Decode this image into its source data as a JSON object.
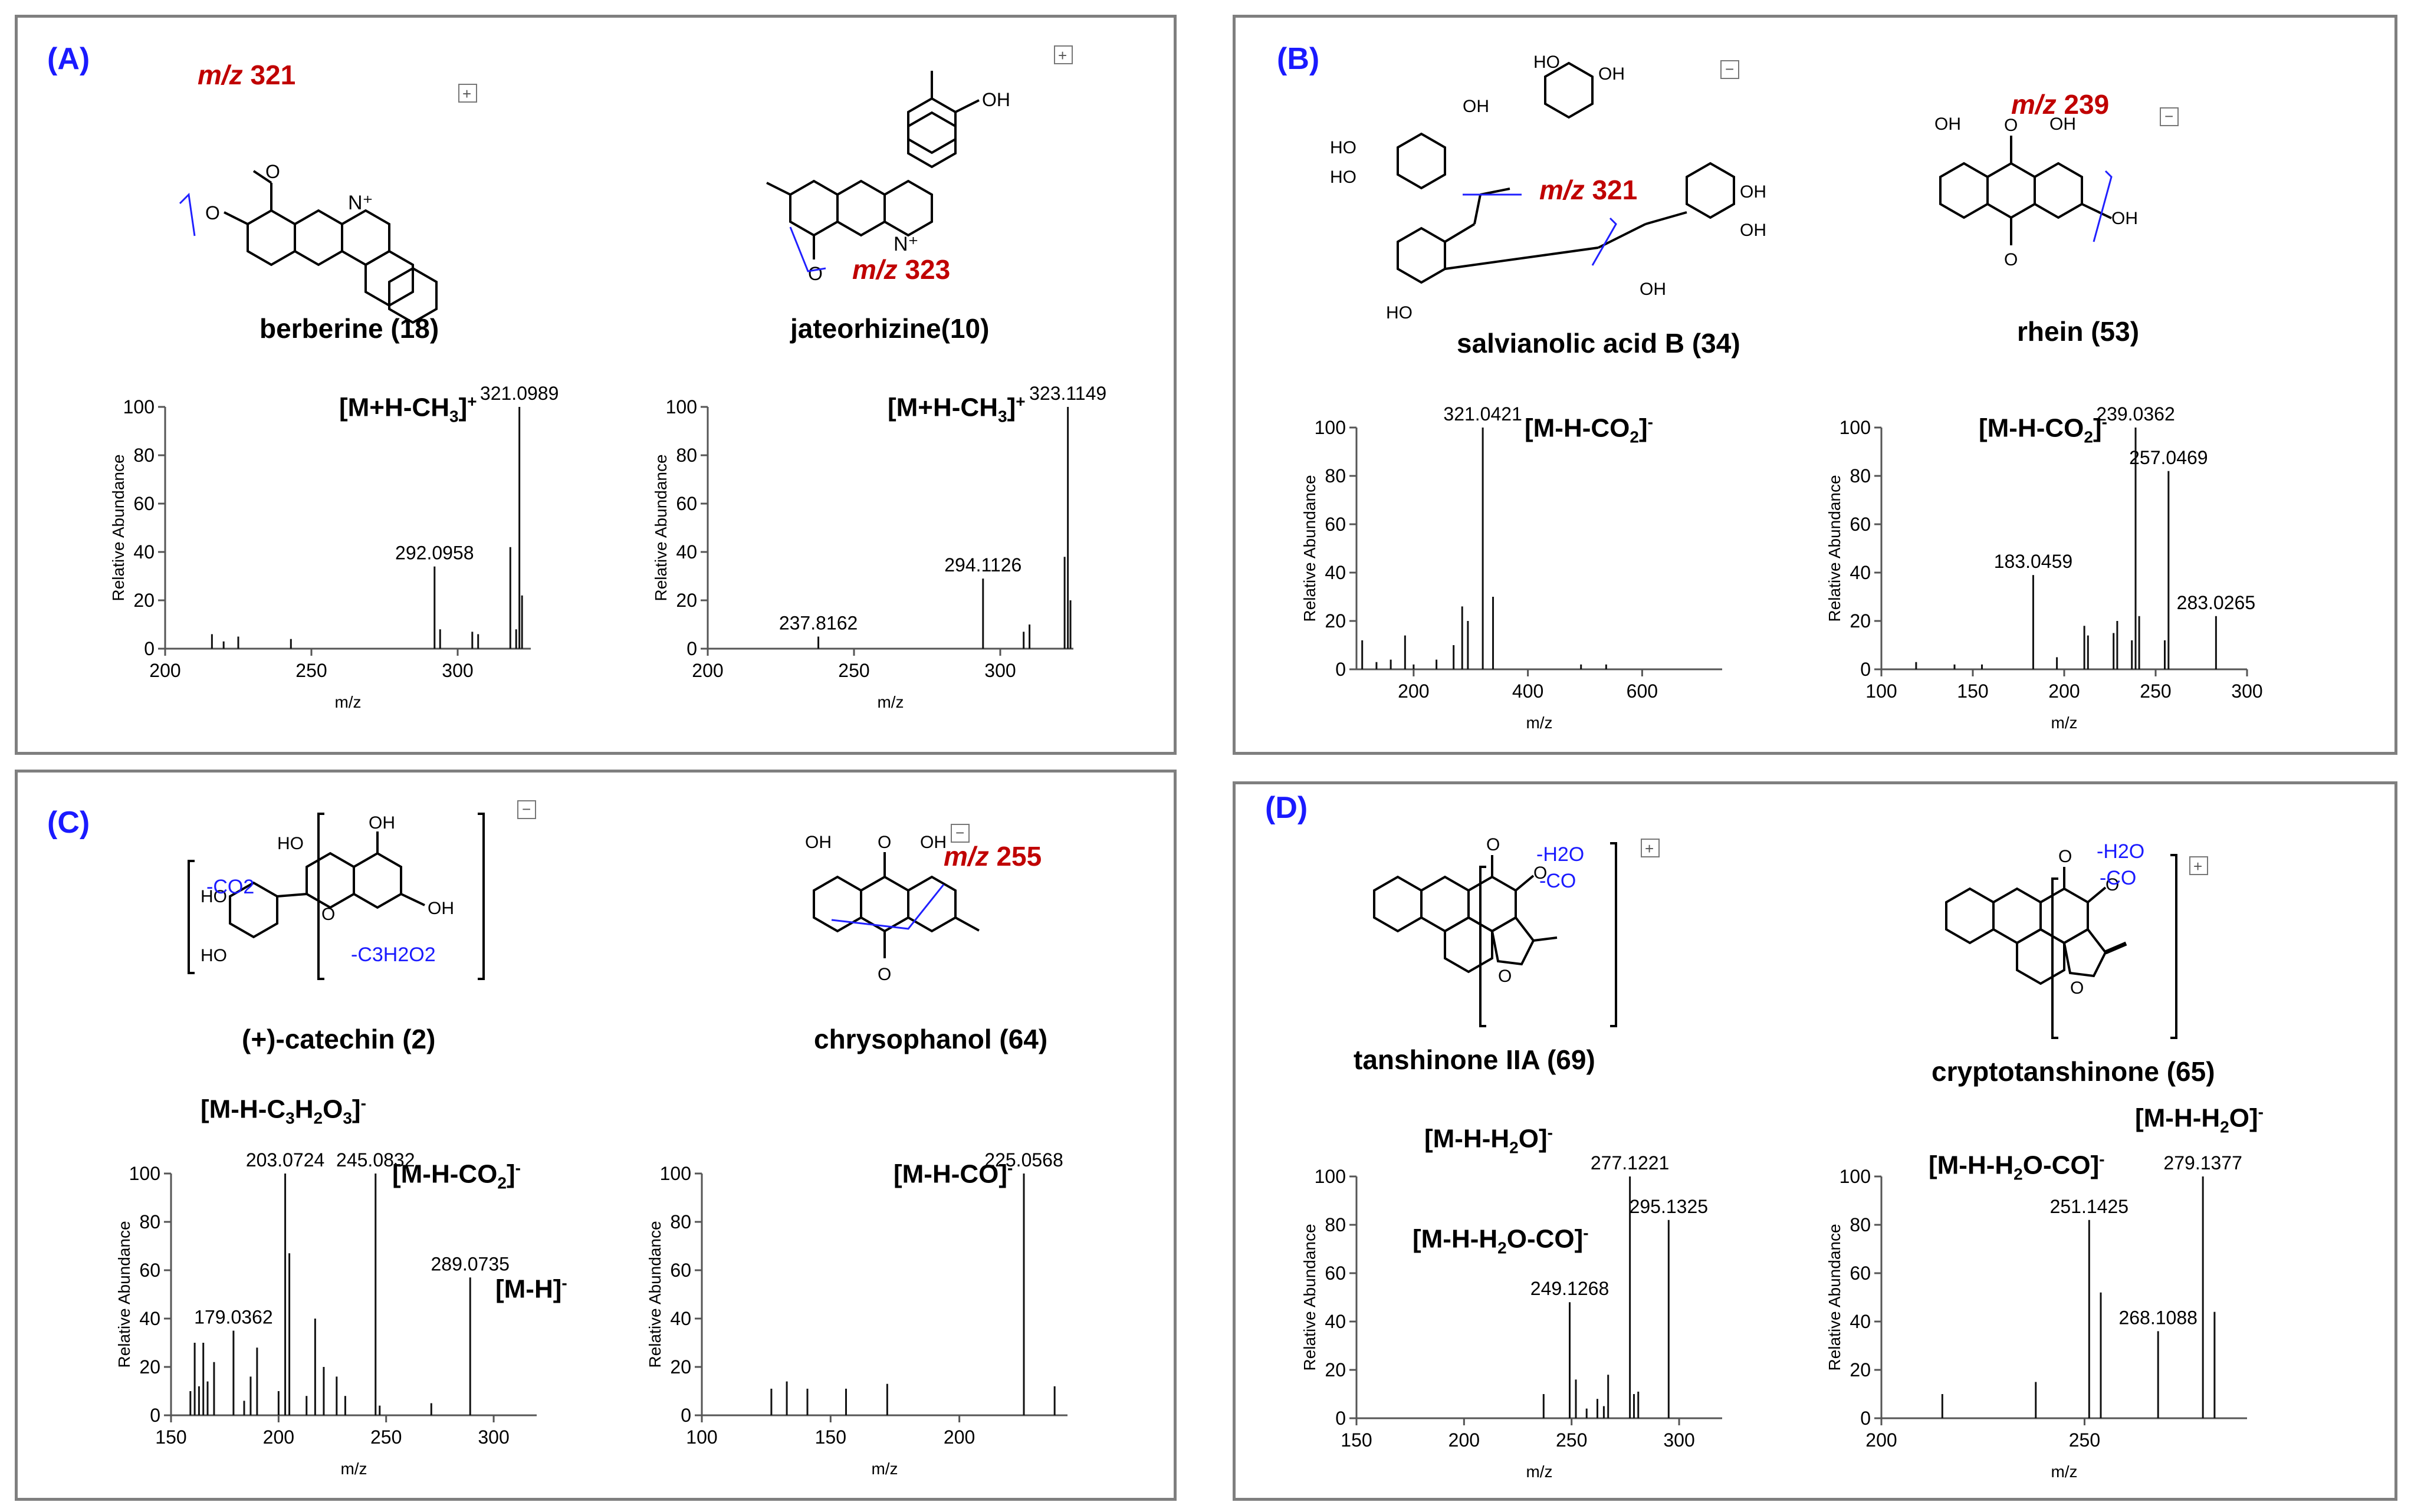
{
  "figure": {
    "panels": [
      {
        "label": "(A)"
      },
      {
        "label": "(B)"
      },
      {
        "label": "(C)"
      },
      {
        "label": "(D)"
      }
    ]
  },
  "compounds": {
    "berberine": "berberine (18)",
    "jateorhizine": "jateorhizine(10)",
    "salvianolic": "salvianolic acid B (34)",
    "rhein": "rhein (53)",
    "catechin": "(+)-catechin (2)",
    "chrysophanol": "chrysophanol (64)",
    "tanshinone": "tanshinone IIA  (69)",
    "cryptotanshinone": "cryptotanshinone (65)"
  },
  "annotations": {
    "berberine_mz": "321",
    "jateorhizine_mz": "323",
    "salvianolic_mz": "321",
    "rhein_mz": "239",
    "chrysophanol_mz": "255",
    "mz_prefix": "m/z",
    "catechin_co2": "-CO2",
    "catechin_c3h2o2": "-C3H2O2",
    "tanshinone_h2o": "-H2O",
    "tanshinone_co": "-CO",
    "crypto_h2o": "-H2O",
    "crypto_co": "-CO"
  },
  "axis_common": {
    "ylabel": "Relative Abundance",
    "xlabel": "m/z"
  },
  "chart_data": [
    {
      "id": "berberine",
      "type": "bar",
      "title": "",
      "xlabel": "m/z",
      "ylabel": "Relative Abundance",
      "xlim": [
        200,
        325
      ],
      "ylim": [
        0,
        100
      ],
      "xticks": [
        200,
        250,
        300
      ],
      "yticks": [
        0,
        20,
        40,
        60,
        80,
        100
      ],
      "x": [
        216,
        220,
        225,
        243,
        292.0958,
        294,
        305,
        307,
        318,
        320,
        321.0989,
        322
      ],
      "values": [
        6,
        3,
        5,
        4,
        34,
        8,
        7,
        6,
        42,
        8,
        100,
        22
      ],
      "data_labels": [
        {
          "text": "321.0989",
          "x": 321.0989,
          "y": 100
        },
        {
          "text": "292.0958",
          "x": 292.0958,
          "y": 34
        }
      ],
      "ion_labels": [
        "[M+H-CH3]+"
      ]
    },
    {
      "id": "jateorhizine",
      "type": "bar",
      "title": "",
      "xlabel": "m/z",
      "ylabel": "Relative Abundance",
      "xlim": [
        200,
        325
      ],
      "ylim": [
        0,
        100
      ],
      "xticks": [
        200,
        250,
        300
      ],
      "yticks": [
        0,
        20,
        40,
        60,
        80,
        100
      ],
      "x": [
        237.8162,
        294.1126,
        308,
        310,
        322,
        323.1149,
        324
      ],
      "values": [
        5,
        29,
        7,
        10,
        38,
        100,
        20
      ],
      "data_labels": [
        {
          "text": "323.1149",
          "x": 323.1149,
          "y": 100
        },
        {
          "text": "294.1126",
          "x": 294.1126,
          "y": 29
        },
        {
          "text": "237.8162",
          "x": 237.8162,
          "y": 5
        }
      ],
      "ion_labels": [
        "[M+H-CH3]+"
      ]
    },
    {
      "id": "salvianolic",
      "type": "bar",
      "title": "",
      "xlabel": "m/z",
      "ylabel": "Relative Abundance",
      "xlim": [
        100,
        740
      ],
      "ylim": [
        0,
        100
      ],
      "xticks": [
        200,
        400,
        600
      ],
      "yticks": [
        0,
        20,
        40,
        60,
        80,
        100
      ],
      "x": [
        110,
        135,
        160,
        185,
        200,
        240,
        270,
        285,
        295,
        321.0421,
        339,
        493,
        537
      ],
      "values": [
        12,
        3,
        4,
        14,
        2,
        4,
        10,
        26,
        20,
        100,
        30,
        2,
        2
      ],
      "data_labels": [
        {
          "text": "321.0421",
          "x": 321.0421,
          "y": 100
        }
      ],
      "ion_labels": [
        "[M-H-CO2]-"
      ]
    },
    {
      "id": "rhein",
      "type": "bar",
      "title": "",
      "xlabel": "m/z",
      "ylabel": "Relative Abundance",
      "xlim": [
        100,
        300
      ],
      "ylim": [
        0,
        100
      ],
      "xticks": [
        100,
        150,
        200,
        250,
        300
      ],
      "yticks": [
        0,
        20,
        40,
        60,
        80,
        100
      ],
      "x": [
        119,
        140,
        155,
        183.0459,
        196,
        211,
        213,
        227,
        229,
        237,
        239.0362,
        241,
        255,
        257.0469,
        283.0265
      ],
      "values": [
        3,
        2,
        2,
        39,
        5,
        18,
        14,
        15,
        20,
        12,
        100,
        22,
        12,
        82,
        22
      ],
      "data_labels": [
        {
          "text": "239.0362",
          "x": 239.0362,
          "y": 100
        },
        {
          "text": "257.0469",
          "x": 257.0469,
          "y": 82
        },
        {
          "text": "183.0459",
          "x": 183.0459,
          "y": 39
        },
        {
          "text": "283.0265",
          "x": 283.0265,
          "y": 22
        }
      ],
      "ion_labels": [
        "[M-H-CO2]-"
      ]
    },
    {
      "id": "catechin",
      "type": "bar",
      "title": "",
      "xlabel": "m/z",
      "ylabel": "Relative Abundance",
      "xlim": [
        150,
        320
      ],
      "ylim": [
        0,
        100
      ],
      "xticks": [
        150,
        200,
        250,
        300
      ],
      "yticks": [
        0,
        20,
        40,
        60,
        80,
        100
      ],
      "x": [
        159,
        161,
        163,
        165,
        167,
        170,
        179.0362,
        184,
        187,
        190,
        200,
        203.0724,
        205,
        213,
        217,
        221,
        227,
        231,
        245.0832,
        247,
        271,
        289.0735
      ],
      "values": [
        10,
        30,
        12,
        30,
        14,
        22,
        35,
        6,
        16,
        28,
        10,
        100,
        67,
        8,
        40,
        20,
        16,
        8,
        100,
        4,
        5,
        57
      ],
      "data_labels": [
        {
          "text": "203.0724",
          "x": 203.0724,
          "y": 100
        },
        {
          "text": "245.0832",
          "x": 245.0832,
          "y": 100
        },
        {
          "text": "179.0362",
          "x": 179.0362,
          "y": 35
        },
        {
          "text": "289.0735",
          "x": 289.0735,
          "y": 57
        }
      ],
      "ion_labels": [
        "[M-H-C3H2O3]-",
        "[M-H-CO2]-",
        "[M-H]-"
      ]
    },
    {
      "id": "chrysophanol",
      "type": "bar",
      "title": "",
      "xlabel": "m/z",
      "ylabel": "Relative Abundance",
      "xlim": [
        100,
        242
      ],
      "ylim": [
        0,
        100
      ],
      "xticks": [
        100,
        150,
        200
      ],
      "yticks": [
        0,
        20,
        40,
        60,
        80,
        100
      ],
      "x": [
        127,
        133,
        141,
        156,
        172,
        225.0568,
        237
      ],
      "values": [
        11,
        14,
        11,
        11,
        13,
        100,
        12
      ],
      "data_labels": [
        {
          "text": "225.0568",
          "x": 225.0568,
          "y": 100
        }
      ],
      "ion_labels": [
        "[M-H-CO]-"
      ]
    },
    {
      "id": "tanshinone",
      "type": "bar",
      "title": "",
      "xlabel": "m/z",
      "ylabel": "Relative Abundance",
      "xlim": [
        150,
        320
      ],
      "ylim": [
        0,
        100
      ],
      "xticks": [
        150,
        200,
        250,
        300
      ],
      "yticks": [
        0,
        20,
        40,
        60,
        80,
        100
      ],
      "x": [
        237,
        249.1268,
        252,
        257,
        262,
        265,
        267,
        277.1221,
        279,
        281,
        295.1325
      ],
      "values": [
        10,
        48,
        16,
        4,
        8,
        5,
        18,
        100,
        10,
        11,
        82
      ],
      "data_labels": [
        {
          "text": "277.1221",
          "x": 277.1221,
          "y": 100
        },
        {
          "text": "295.1325",
          "x": 295.1325,
          "y": 82
        },
        {
          "text": "249.1268",
          "x": 249.1268,
          "y": 48
        }
      ],
      "ion_labels": [
        "[M-H-H2O]-",
        "[M-H-H2O-CO]-"
      ]
    },
    {
      "id": "cryptotanshinone",
      "type": "bar",
      "title": "",
      "xlabel": "m/z",
      "ylabel": "Relative Abundance",
      "xlim": [
        200,
        290
      ],
      "ylim": [
        0,
        100
      ],
      "xticks": [
        200,
        250
      ],
      "yticks": [
        0,
        20,
        40,
        60,
        80,
        100
      ],
      "x": [
        215,
        238,
        251.1425,
        254,
        268.1088,
        279.1377,
        282
      ],
      "values": [
        10,
        15,
        82,
        52,
        36,
        100,
        44
      ],
      "data_labels": [
        {
          "text": "279.1377",
          "x": 279.1377,
          "y": 100
        },
        {
          "text": "251.1425",
          "x": 251.1425,
          "y": 82
        },
        {
          "text": "268.1088",
          "x": 268.1088,
          "y": 36
        }
      ],
      "ion_labels": [
        "[M-H-H2O]-",
        "[M-H-H2O-CO]-"
      ]
    }
  ]
}
